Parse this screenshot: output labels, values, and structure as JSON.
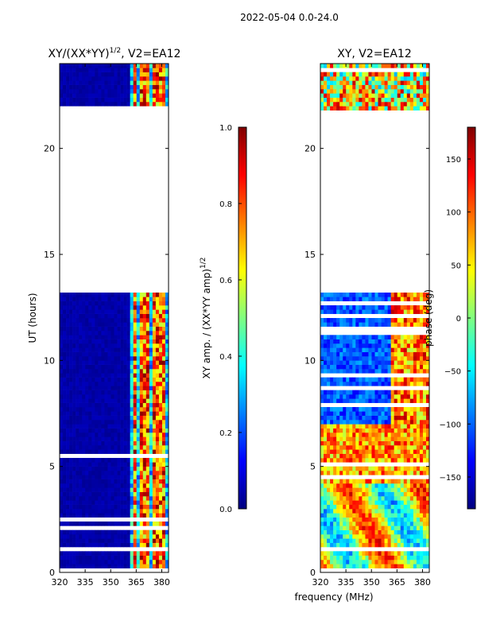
{
  "figure_title": "2022-05-04 0.0-24.0",
  "colors": {
    "jet": [
      "#00007f",
      "#0000ff",
      "#0080ff",
      "#00ffff",
      "#80ff80",
      "#ffff00",
      "#ff8000",
      "#ff0000",
      "#7f0000"
    ],
    "background": "#ffffff",
    "axis": "#000000"
  },
  "chart_data": [
    {
      "type": "heatmap",
      "name": "amp-ratio",
      "title_main": "XY/(XX*YY)",
      "title_sup": "1/2",
      "title_tail": ", V2=EA12",
      "ylabel": "UT (hours)",
      "xlabel": "",
      "x_ticks": [
        "320",
        "335",
        "350",
        "365",
        "380"
      ],
      "x_tick_values": [
        320,
        335,
        350,
        365,
        380
      ],
      "xlim": [
        320,
        384
      ],
      "y_ticks": [
        "0",
        "5",
        "10",
        "15",
        "20"
      ],
      "y_tick_values": [
        0,
        5,
        10,
        15,
        20
      ],
      "ylim": [
        0,
        24
      ],
      "data_gap_hours": [
        13.1,
        21.8
      ],
      "band_columns_mhz": [
        364,
        368,
        371,
        375,
        378,
        381
      ],
      "colorbar": {
        "label_main": "XY amp. / (XX*YY amp)",
        "label_sup": "1/2",
        "ticks": [
          "0.0",
          "0.2",
          "0.4",
          "0.6",
          "0.8",
          "1.0"
        ],
        "tick_values": [
          0.0,
          0.2,
          0.4,
          0.6,
          0.8,
          1.0
        ],
        "range": [
          0.0,
          1.0
        ]
      }
    },
    {
      "type": "heatmap",
      "name": "phase",
      "title": "XY, V2=EA12",
      "ylabel": "",
      "xlabel": "frequency (MHz)",
      "x_ticks": [
        "320",
        "335",
        "350",
        "365",
        "380"
      ],
      "x_tick_values": [
        320,
        335,
        350,
        365,
        380
      ],
      "xlim": [
        320,
        384
      ],
      "y_ticks": [
        "0",
        "5",
        "10",
        "15",
        "20"
      ],
      "y_tick_values": [
        0,
        5,
        10,
        15,
        20
      ],
      "ylim": [
        0,
        24
      ],
      "data_gap_hours": [
        13.1,
        21.8
      ],
      "colorbar": {
        "label": "phase (deg)",
        "ticks": [
          "150",
          "100",
          "50",
          "0",
          "−50",
          "−100",
          "−150"
        ],
        "tick_values": [
          150,
          100,
          50,
          0,
          -50,
          -100,
          -150
        ],
        "range": [
          -180,
          180
        ]
      }
    }
  ]
}
